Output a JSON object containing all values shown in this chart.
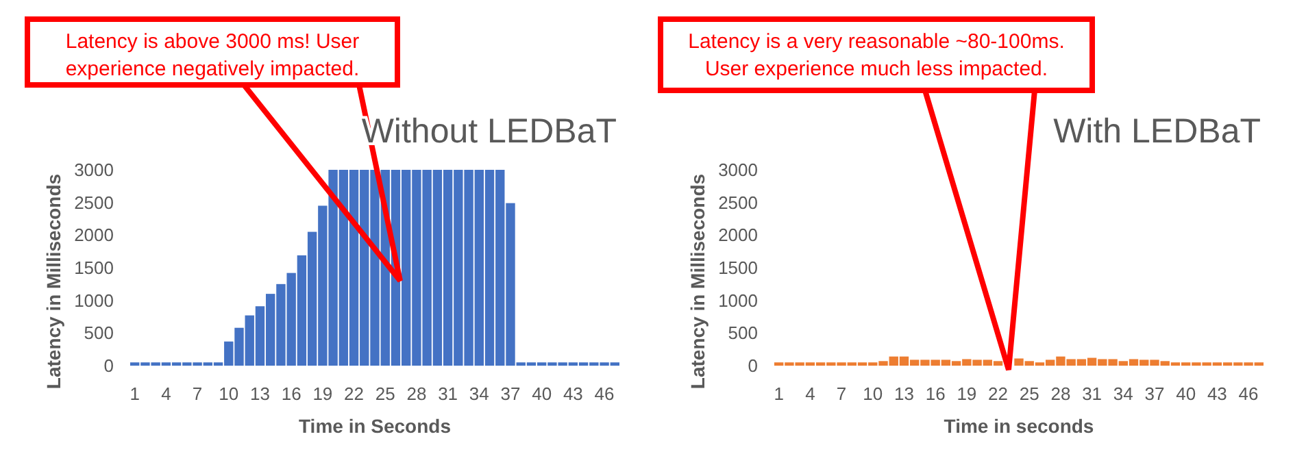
{
  "chart_data": [
    {
      "type": "bar",
      "title": "Without LEDBaT",
      "xlabel": "Time in Seconds",
      "ylabel": "Latency in Milliseconds",
      "categories": [
        "1",
        null,
        null,
        "4",
        null,
        null,
        "7",
        null,
        null,
        "10",
        null,
        null,
        "13",
        null,
        null,
        "16",
        null,
        null,
        "19",
        null,
        null,
        "22",
        null,
        null,
        "25",
        null,
        null,
        "28",
        null,
        null,
        "31",
        null,
        null,
        "34",
        null,
        null,
        "37",
        null,
        null,
        "40",
        null,
        null,
        "43",
        null,
        null,
        "46",
        null
      ],
      "values": [
        50,
        50,
        50,
        50,
        50,
        50,
        50,
        50,
        50,
        370,
        580,
        770,
        910,
        1100,
        1250,
        1420,
        1690,
        2050,
        2450,
        3000,
        3000,
        3000,
        3000,
        3000,
        3000,
        3000,
        3000,
        3000,
        3000,
        3000,
        3000,
        3000,
        3000,
        3000,
        3000,
        3000,
        2490,
        50,
        50,
        50,
        50,
        50,
        50,
        50,
        50,
        50,
        50
      ],
      "color": "#4472c4",
      "ylim": [
        0,
        3000
      ],
      "yticks": [
        0,
        500,
        1000,
        1500,
        2000,
        2500,
        3000
      ],
      "grid": false,
      "annotations": [
        "Latency is above 3000 ms! User experience negatively impacted."
      ]
    },
    {
      "type": "bar",
      "title": "With LEDBaT",
      "xlabel": "Time in seconds",
      "ylabel": "Latency in Milliseconds",
      "categories": [
        "1",
        null,
        null,
        "4",
        null,
        null,
        "7",
        null,
        null,
        "10",
        null,
        null,
        "13",
        null,
        null,
        "16",
        null,
        null,
        "19",
        null,
        null,
        "22",
        null,
        null,
        "25",
        null,
        null,
        "28",
        null,
        null,
        "31",
        null,
        null,
        "34",
        null,
        null,
        "37",
        null,
        null,
        "40",
        null,
        null,
        "43",
        null,
        null,
        "46",
        null
      ],
      "values": [
        50,
        50,
        50,
        50,
        50,
        50,
        50,
        50,
        50,
        50,
        70,
        140,
        140,
        90,
        90,
        90,
        90,
        70,
        100,
        90,
        90,
        70,
        null,
        110,
        70,
        50,
        90,
        140,
        100,
        100,
        120,
        100,
        100,
        70,
        100,
        90,
        90,
        70,
        50,
        50,
        50,
        50,
        50,
        50,
        50,
        50,
        50
      ],
      "color": "#ed7d31",
      "ylim": [
        0,
        3000
      ],
      "yticks": [
        0,
        500,
        1000,
        1500,
        2000,
        2500,
        3000
      ],
      "grid": false,
      "annotations": [
        "Latency is a very reasonable ~80-100ms. User experience much less impacted."
      ]
    }
  ]
}
